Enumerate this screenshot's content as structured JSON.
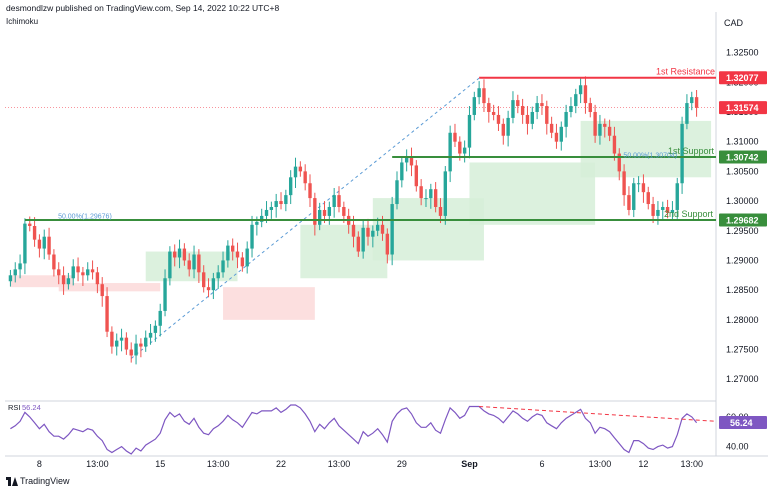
{
  "header": {
    "attribution": "desmondlzw published on TradingView.com, Sep 14, 2022 10:22 UTC+8",
    "indicator": "Ichimoku",
    "currency": "CAD",
    "brand": "TradingView"
  },
  "colors": {
    "up": "#26a69a",
    "down": "#ef5350",
    "resistance": "#f23645",
    "support": "#388e3c",
    "cloud_bull": "#d6eed8",
    "cloud_bear": "#fbd9d9",
    "rsi": "#7e57c2",
    "fib": "#5b9bd5",
    "current": "#f23645"
  },
  "chart_data": [
    {
      "type": "candlestick",
      "title": "",
      "ylim": [
        1.2665,
        1.3315
      ],
      "y_ticks": [
        1.325,
        1.32,
        1.315,
        1.31,
        1.305,
        1.3,
        1.295,
        1.29,
        1.285,
        1.28,
        1.275,
        1.27
      ],
      "y_tick_labels": [
        "1.32500",
        "1.32000",
        "1.31500",
        "1.31000",
        "1.30500",
        "1.30000",
        "1.29500",
        "1.29000",
        "1.28500",
        "1.28000",
        "1.27500",
        "1.27000"
      ],
      "x_tick_labels": [
        {
          "label": "8",
          "bar": 6
        },
        {
          "label": "13:00",
          "bar": 18
        },
        {
          "label": "15",
          "bar": 31
        },
        {
          "label": "13:00",
          "bar": 43
        },
        {
          "label": "22",
          "bar": 56
        },
        {
          "label": "13:00",
          "bar": 68
        },
        {
          "label": "29",
          "bar": 81
        },
        {
          "label": "Sep",
          "bar": 95
        },
        {
          "label": "6",
          "bar": 110
        },
        {
          "label": "13:00",
          "bar": 122
        },
        {
          "label": "12",
          "bar": 131
        },
        {
          "label": "13:00",
          "bar": 141
        }
      ],
      "close": [
        1.2875,
        1.2885,
        1.2895,
        1.2962,
        1.2958,
        1.2935,
        1.292,
        1.294,
        1.291,
        1.2885,
        1.2875,
        1.286,
        1.287,
        1.289,
        1.288,
        1.2875,
        1.2885,
        1.288,
        1.286,
        1.284,
        1.278,
        1.2755,
        1.2765,
        1.277,
        1.275,
        1.274,
        1.276,
        1.2755,
        1.277,
        1.2778,
        1.279,
        1.2815,
        1.287,
        1.2915,
        1.2905,
        1.292,
        1.29,
        1.2885,
        1.291,
        1.288,
        1.2855,
        1.285,
        1.287,
        1.288,
        1.29,
        1.2925,
        1.2915,
        1.2905,
        1.289,
        1.292,
        1.296,
        1.2965,
        1.2975,
        1.2985,
        1.299,
        1.3,
        1.2995,
        1.301,
        1.304,
        1.3058,
        1.305,
        1.303,
        1.3005,
        1.296,
        1.2985,
        1.2975,
        1.299,
        1.301,
        1.299,
        1.2975,
        1.296,
        1.294,
        1.2915,
        1.2955,
        1.294,
        1.295,
        1.296,
        1.2945,
        1.291,
        1.2995,
        1.3035,
        1.3065,
        1.3075,
        1.306,
        1.3025,
        1.3005,
        1.3005,
        1.302,
        1.299,
        1.2975,
        1.305,
        1.3115,
        1.31,
        1.308,
        1.309,
        1.3145,
        1.3175,
        1.319,
        1.3165,
        1.315,
        1.3145,
        1.313,
        1.311,
        1.314,
        1.317,
        1.316,
        1.3145,
        1.313,
        1.315,
        1.3165,
        1.316,
        1.313,
        1.3115,
        1.31,
        1.3125,
        1.315,
        1.316,
        1.318,
        1.3195,
        1.3165,
        1.315,
        1.311,
        1.313,
        1.3125,
        1.311,
        1.308,
        1.305,
        1.301,
        1.2985,
        1.303,
        1.303,
        1.3015,
        1.2995,
        1.2975,
        1.2985,
        1.299,
        1.298,
        1.2985,
        1.303,
        1.313,
        1.3165,
        1.3175,
        1.3157
      ],
      "series": [
        {
          "name": "Ichimoku cloud"
        },
        {
          "name": "RSI"
        }
      ],
      "levels": [
        {
          "name": "1st Resistance",
          "value": 1.32077,
          "label": "1.32077"
        },
        {
          "name": "1st Support",
          "value": 1.30742,
          "label": "1.30742"
        },
        {
          "name": "2nd Support",
          "value": 1.29682,
          "label": "1.29682"
        }
      ],
      "current_price": {
        "value": 1.31574,
        "label": "1.31574"
      },
      "fib_labels": [
        {
          "text": "50.00%(1.29676)",
          "value": 1.29676,
          "bar": 14
        },
        {
          "text": "50.00%(1.30704)",
          "value": 1.30704,
          "bar": 131
        }
      ],
      "fib_line": {
        "start_bar": 25,
        "start_value": 1.2735,
        "end_bar": 97,
        "end_value": 1.3207
      },
      "cloud": [
        {
          "from_bar": 0,
          "to_bar": 10,
          "top": 1.2875,
          "bottom": 1.2855,
          "kind": "bear"
        },
        {
          "from_bar": 10,
          "to_bar": 28,
          "top": 1.2862,
          "bottom": 1.2848,
          "kind": "bear"
        },
        {
          "from_bar": 28,
          "to_bar": 44,
          "top": 1.2915,
          "bottom": 1.2865,
          "kind": "bull"
        },
        {
          "from_bar": 44,
          "to_bar": 60,
          "top": 1.2855,
          "bottom": 1.28,
          "kind": "bear"
        },
        {
          "from_bar": 60,
          "to_bar": 75,
          "top": 1.296,
          "bottom": 1.287,
          "kind": "bull"
        },
        {
          "from_bar": 75,
          "to_bar": 95,
          "top": 1.3005,
          "bottom": 1.29,
          "kind": "bull"
        },
        {
          "from_bar": 95,
          "to_bar": 118,
          "top": 1.3065,
          "bottom": 1.296,
          "kind": "bull"
        },
        {
          "from_bar": 118,
          "to_bar": 143,
          "top": 1.3135,
          "bottom": 1.304,
          "kind": "bull"
        }
      ]
    },
    {
      "type": "line",
      "title": "RSI",
      "value_label": "56.24",
      "ylim": [
        35,
        70
      ],
      "y_ticks": [
        60,
        40
      ],
      "y_tick_labels": [
        "60.00",
        "40.00"
      ],
      "current": {
        "value": 56.24,
        "label": "56.24"
      },
      "values": [
        52,
        54,
        57,
        63,
        60,
        56,
        52,
        55,
        50,
        47,
        47,
        45,
        48,
        52,
        51,
        50,
        52,
        51,
        47,
        44,
        38,
        36,
        38,
        40,
        37,
        35,
        39,
        37,
        41,
        43,
        45,
        49,
        58,
        63,
        60,
        62,
        57,
        55,
        59,
        53,
        49,
        48,
        52,
        54,
        57,
        61,
        58,
        56,
        53,
        58,
        63,
        62,
        64,
        64,
        64,
        66,
        63,
        65,
        68,
        68,
        66,
        62,
        57,
        50,
        55,
        52,
        56,
        59,
        54,
        51,
        48,
        45,
        42,
        50,
        47,
        49,
        52,
        48,
        43,
        57,
        62,
        65,
        66,
        62,
        56,
        53,
        53,
        56,
        51,
        49,
        58,
        66,
        63,
        59,
        61,
        67,
        67,
        67,
        64,
        62,
        61,
        59,
        56,
        60,
        64,
        62,
        59,
        57,
        60,
        62,
        61,
        56,
        54,
        52,
        56,
        59,
        61,
        63,
        65,
        59,
        56,
        49,
        53,
        52,
        50,
        46,
        42,
        38,
        36,
        44,
        44,
        42,
        39,
        38,
        40,
        41,
        39,
        40,
        48,
        59,
        62,
        60,
        56
      ],
      "trend_line": {
        "start_bar": 97,
        "start_value": 67,
        "end_bar": 143,
        "end_value": 57
      }
    }
  ]
}
